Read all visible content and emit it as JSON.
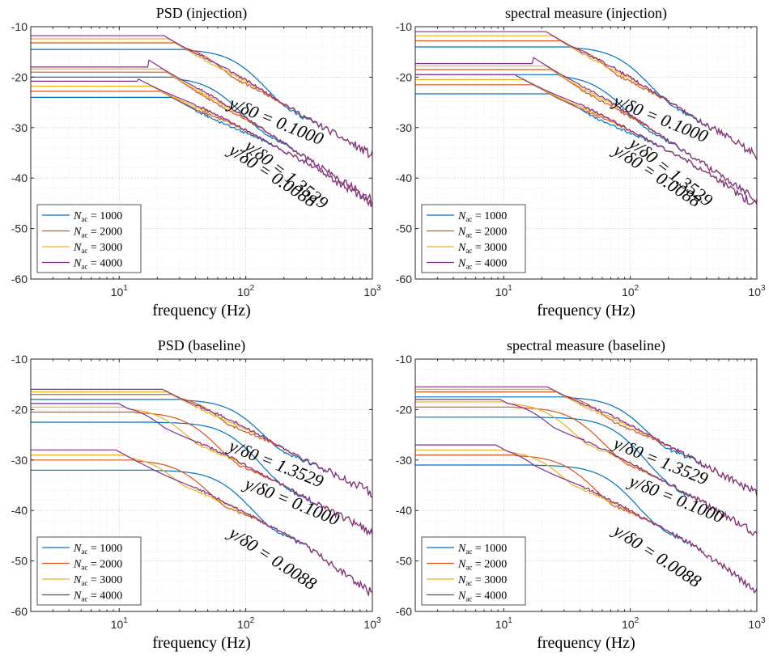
{
  "colors": {
    "c1": "#0072BD",
    "c2": "#D95319",
    "c3": "#EDB120",
    "c4": "#7E2F8E",
    "grid": "#dcdcdc",
    "minorgrid": "#ececec"
  },
  "legend": [
    "N_ac = 1000",
    "N_ac = 2000",
    "N_ac = 3000",
    "N_ac = 4000"
  ],
  "chart_data": [
    {
      "type": "line",
      "title": "PSD (injection)",
      "xlabel": "frequency (Hz)",
      "ylabel": "",
      "xscale": "log",
      "xlim": [
        2,
        1000
      ],
      "ylim": [
        -60,
        -10
      ],
      "yticks": [
        -60,
        -50,
        -40,
        -30,
        -20,
        -10
      ],
      "xticks": [
        "10^1",
        "10^2",
        "10^3"
      ],
      "grid": true,
      "legend_position": "bottom-left",
      "groups": [
        {
          "label": "y/δ0 = 0.1000",
          "rotation": 22,
          "levels": [
            -14.5,
            -13.2,
            -12.4,
            -11.8
          ],
          "corners": [
            90,
            50,
            32,
            22
          ],
          "tail": [
            [
              100,
              -20.5
            ],
            [
              300,
              -28
            ],
            [
              1000,
              -35.5
            ]
          ]
        },
        {
          "label": "y/δ0 = 1.3529",
          "rotation": 38,
          "levels": [
            -20,
            -19,
            -18.4,
            -18
          ],
          "corners": [
            60,
            35,
            24,
            17
          ],
          "tail": [
            [
              100,
              -28
            ],
            [
              300,
              -36
            ],
            [
              1000,
              -44.5
            ]
          ]
        },
        {
          "label": "y/δ0 = 0.0088",
          "rotation": 33,
          "levels": [
            -24,
            -22.8,
            -21.8,
            -20.8
          ],
          "corners": [
            40,
            25,
            18,
            14
          ],
          "tail": [
            [
              100,
              -30.5
            ],
            [
              300,
              -37
            ],
            [
              1000,
              -45
            ]
          ]
        }
      ]
    },
    {
      "type": "line",
      "title": "spectral measure (injection)",
      "xlabel": "frequency (Hz)",
      "ylabel": "",
      "xscale": "log",
      "xlim": [
        2,
        1000
      ],
      "ylim": [
        -60,
        -10
      ],
      "yticks": [
        -60,
        -50,
        -40,
        -30,
        -20,
        -10
      ],
      "xticks": [
        "10^1",
        "10^2",
        "10^3"
      ],
      "grid": true,
      "legend_position": "bottom-left",
      "groups": [
        {
          "label": "y/δ0 = 0.1000",
          "rotation": 22,
          "levels": [
            -14,
            -12.8,
            -11.8,
            -11
          ],
          "corners": [
            90,
            50,
            32,
            22
          ],
          "tail": [
            [
              100,
              -20
            ],
            [
              300,
              -27.5
            ],
            [
              1000,
              -35.5
            ]
          ]
        },
        {
          "label": "y/δ0 = 1.3529",
          "rotation": 38,
          "levels": [
            -19.5,
            -18.5,
            -17.8,
            -17.3
          ],
          "corners": [
            60,
            35,
            24,
            17
          ],
          "tail": [
            [
              100,
              -27.5
            ],
            [
              300,
              -35.5
            ],
            [
              1000,
              -44
            ]
          ]
        },
        {
          "label": "y/δ0 = 0.0088",
          "rotation": 33,
          "levels": [
            -23.3,
            -21.5,
            -20.5,
            -19.5
          ],
          "corners": [
            40,
            25,
            18,
            14
          ],
          "tail": [
            [
              100,
              -30.5
            ],
            [
              300,
              -37
            ],
            [
              1000,
              -45.5
            ]
          ]
        }
      ]
    },
    {
      "type": "line",
      "title": "PSD (baseline)",
      "xlabel": "frequency (Hz)",
      "ylabel": "",
      "xscale": "log",
      "xlim": [
        2,
        1000
      ],
      "ylim": [
        -60,
        -10
      ],
      "yticks": [
        -60,
        -50,
        -40,
        -30,
        -20,
        -10
      ],
      "xticks": [
        "10^1",
        "10^2",
        "10^3"
      ],
      "grid": true,
      "legend_position": "bottom-left",
      "groups": [
        {
          "label": "y/δ0 = 1.3529",
          "rotation": 22,
          "levels": [
            -18,
            -17,
            -16.5,
            -16
          ],
          "corners": [
            90,
            50,
            32,
            22
          ],
          "tail": [
            [
              100,
              -23.5
            ],
            [
              300,
              -30
            ],
            [
              1000,
              -36.5
            ]
          ]
        },
        {
          "label": "y/δ0 = 0.1000",
          "rotation": 22,
          "levels": [
            -22.5,
            -20.5,
            -19.5,
            -18.8
          ],
          "corners": [
            80,
            40,
            25,
            18
          ],
          "tail": [
            [
              100,
              -31
            ],
            [
              300,
              -37.5
            ],
            [
              1000,
              -44.5
            ]
          ]
        },
        {
          "label": "y/δ0 = 0.0088",
          "rotation": 33,
          "levels": [
            -32,
            -30,
            -29,
            -28
          ],
          "corners": [
            70,
            35,
            22,
            15
          ],
          "tail": [
            [
              100,
              -40.5
            ],
            [
              300,
              -47
            ],
            [
              1000,
              -56.5
            ]
          ]
        }
      ]
    },
    {
      "type": "line",
      "title": "spectral measure (baseline)",
      "xlabel": "frequency (Hz)",
      "ylabel": "",
      "xscale": "log",
      "xlim": [
        2,
        1000
      ],
      "ylim": [
        -60,
        -10
      ],
      "yticks": [
        -60,
        -50,
        -40,
        -30,
        -20,
        -10
      ],
      "xticks": [
        "10^1",
        "10^2",
        "10^3"
      ],
      "grid": true,
      "legend_position": "bottom-left",
      "groups": [
        {
          "label": "y/δ0 = 1.3529",
          "rotation": 22,
          "levels": [
            -17.5,
            -16.5,
            -16,
            -15.5
          ],
          "corners": [
            90,
            50,
            32,
            22
          ],
          "tail": [
            [
              100,
              -23
            ],
            [
              300,
              -29.5
            ],
            [
              1000,
              -36.5
            ]
          ]
        },
        {
          "label": "y/δ0 = 0.1000",
          "rotation": 22,
          "levels": [
            -21.5,
            -19.5,
            -18.5,
            -18
          ],
          "corners": [
            80,
            40,
            25,
            18
          ],
          "tail": [
            [
              100,
              -30.5
            ],
            [
              300,
              -37
            ],
            [
              1000,
              -44.5
            ]
          ]
        },
        {
          "label": "y/δ0 = 0.0088",
          "rotation": 33,
          "levels": [
            -31,
            -29,
            -28,
            -27
          ],
          "corners": [
            70,
            35,
            22,
            15
          ],
          "tail": [
            [
              100,
              -40
            ],
            [
              300,
              -46.5
            ],
            [
              1000,
              -56
            ]
          ]
        }
      ]
    }
  ]
}
